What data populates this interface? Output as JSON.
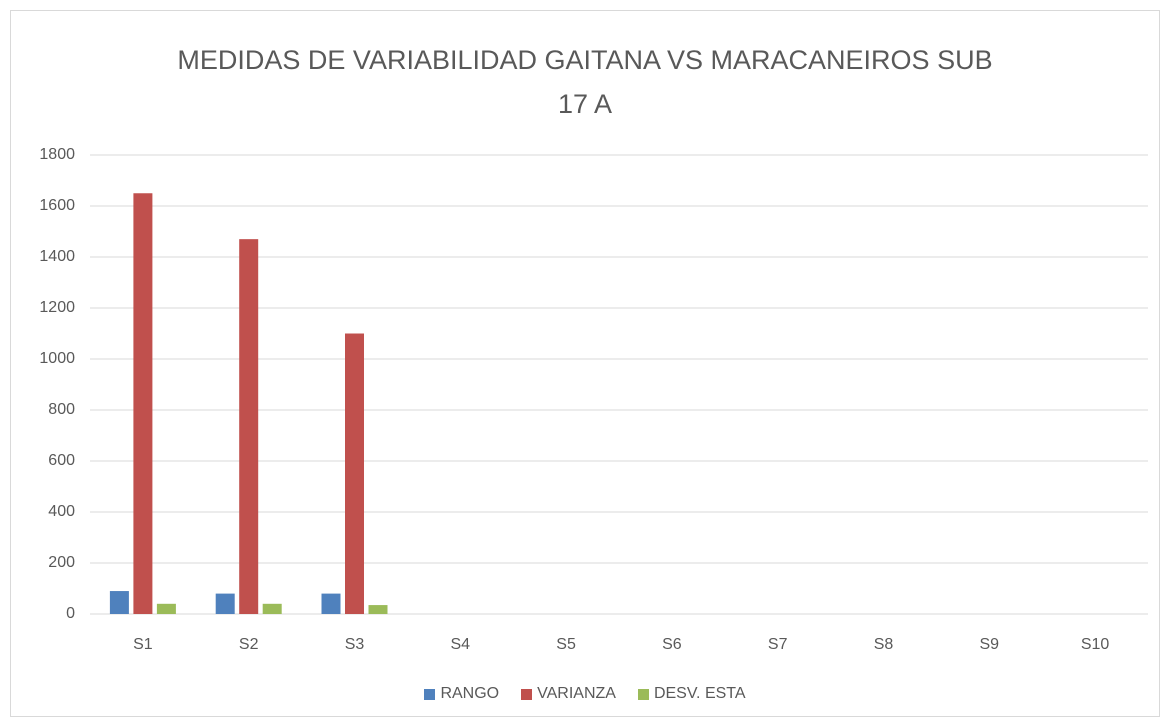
{
  "chart_data": {
    "type": "bar",
    "title": "MEDIDAS DE VARIABILIDAD GAITANA VS MARACANEIROS SUB 17 A",
    "categories": [
      "S1",
      "S2",
      "S3",
      "S4",
      "S5",
      "S6",
      "S7",
      "S8",
      "S9",
      "S10"
    ],
    "series": [
      {
        "name": "RANGO",
        "color": "#4f81bd",
        "values": [
          90,
          80,
          80,
          null,
          null,
          null,
          null,
          null,
          null,
          null
        ]
      },
      {
        "name": "VARIANZA",
        "color": "#c0504d",
        "values": [
          1650,
          1470,
          1100,
          null,
          null,
          null,
          null,
          null,
          null,
          null
        ]
      },
      {
        "name": "DESV. ESTA",
        "color": "#9bbb59",
        "values": [
          40,
          40,
          35,
          null,
          null,
          null,
          null,
          null,
          null,
          null
        ]
      }
    ],
    "ylim": [
      0,
      1800
    ],
    "yticks": [
      0,
      200,
      400,
      600,
      800,
      1000,
      1200,
      1400,
      1600,
      1800
    ],
    "grid": true,
    "legend": "bottom"
  }
}
